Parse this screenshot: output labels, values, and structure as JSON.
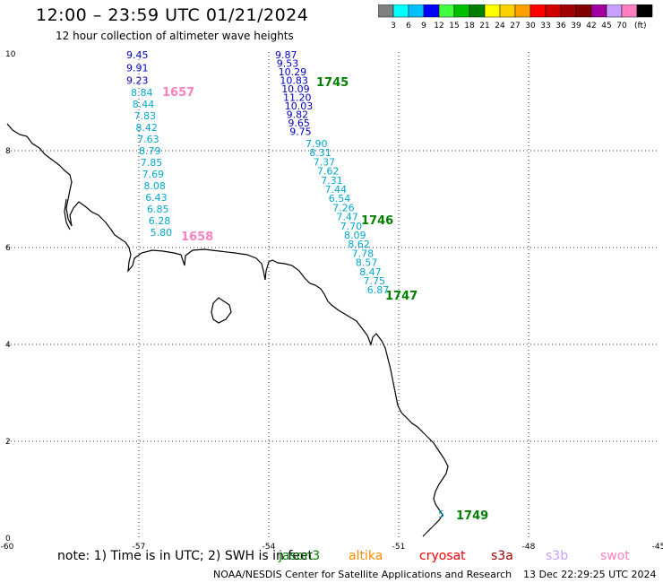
{
  "title": "12:00 – 23:59 UTC 01/21/2024",
  "subtitle": "12 hour collection of altimeter wave heights",
  "legend": {
    "colors": [
      "#808080",
      "#00ffff",
      "#00bfff",
      "#0000ff",
      "#40ff40",
      "#00c000",
      "#008000",
      "#ffff00",
      "#ffd000",
      "#ffa000",
      "#ff0000",
      "#d00000",
      "#a00000",
      "#800000",
      "#a000a0",
      "#c8a0ff",
      "#ff80c0",
      "#000000"
    ],
    "labels": [
      "3",
      "6",
      "9",
      "12",
      "15",
      "18",
      "21",
      "24",
      "27",
      "30",
      "33",
      "36",
      "39",
      "42",
      "45",
      "70"
    ],
    "unit": "(ft)"
  },
  "axes": {
    "x_ticks": [
      "-60",
      "-57",
      "-54",
      "-51",
      "-48",
      "-45"
    ],
    "y_ticks": [
      "10",
      "8",
      "6",
      "4",
      "2",
      "0"
    ]
  },
  "tracks": [
    {
      "color": "#0000c0",
      "values": [
        "9.45",
        "9.91",
        "9.23"
      ]
    },
    {
      "color": "#00a8d0",
      "values": [
        "8.84",
        "8.44",
        "7.83",
        "8.42",
        "7.63",
        "8.79",
        "7.85",
        "7.69",
        "8.08",
        "6.43",
        "6.85",
        "6.28",
        "5.80"
      ]
    },
    {
      "color": "#0000c0",
      "values": [
        "9.87",
        "9.53",
        "10.29",
        "10.83",
        "10.09",
        "11.20",
        "10.03",
        "9.82",
        "9.65",
        "9.75"
      ]
    },
    {
      "color": "#00a8d0",
      "values": [
        "7.90",
        "8.31",
        "7.37",
        "7.62",
        "7.31",
        "7.44",
        "6.54",
        "7.26",
        "7.47",
        "7.70",
        "8.09",
        "8.62",
        "7.78",
        "8.57",
        "8.47",
        "7.75",
        "6.87"
      ]
    },
    {
      "color": "#00a8d0",
      "values": [
        "5"
      ]
    }
  ],
  "time_labels": [
    {
      "text": "1657",
      "color": "#ff80c0"
    },
    {
      "text": "1658",
      "color": "#ff80c0"
    },
    {
      "text": "1745",
      "color": "#008000"
    },
    {
      "text": "1746",
      "color": "#008000"
    },
    {
      "text": "1747",
      "color": "#008000"
    },
    {
      "text": "1749",
      "color": "#008000"
    }
  ],
  "note": "note:  1) Time is in UTC; 2) SWH is in feet",
  "satellites": [
    {
      "name": "jason3",
      "color": "#008000"
    },
    {
      "name": "altika",
      "color": "#ff8c00"
    },
    {
      "name": "cryosat",
      "color": "#ff0000"
    },
    {
      "name": "s3a",
      "color": "#a00000"
    },
    {
      "name": "s3b",
      "color": "#c8a0ff"
    },
    {
      "name": "swot",
      "color": "#ff80c0"
    }
  ],
  "footer": {
    "credit": "NOAA/NESDIS Center for Satellite Applications and Research",
    "timestamp": "13 Dec 22:29:25 UTC 2024"
  }
}
